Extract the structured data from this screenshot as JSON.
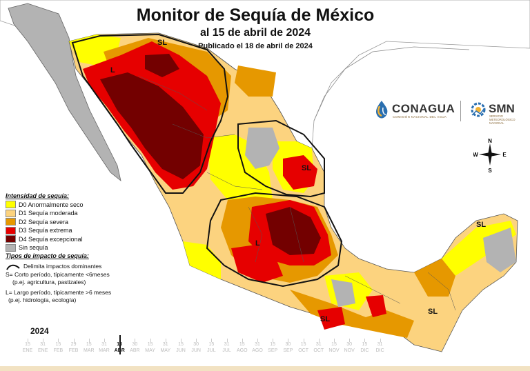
{
  "title": "Monitor de Sequía de México",
  "subtitle": "al 15 de abril de 2024",
  "published": "Publicado el 18 de abril de 2024",
  "branding": {
    "conagua": "CONAGUA",
    "conagua_sub": "COMISIÓN NACIONAL DEL AGUA",
    "smn": "SMN",
    "smn_sub": "SERVICIO METEOROLÓGICO NACIONAL"
  },
  "compass": {
    "n": "N",
    "s": "S",
    "e": "E",
    "w": "W"
  },
  "legend": {
    "heading": "Intensidad de sequía:",
    "items": [
      {
        "label": "D0 Anormalmente seco",
        "color": "#ffff00"
      },
      {
        "label": "D1 Sequía moderada",
        "color": "#fcd37f"
      },
      {
        "label": "D2 Sequía severa",
        "color": "#e69800"
      },
      {
        "label": "D3 Sequía extrema",
        "color": "#e60000"
      },
      {
        "label": "D4 Sequía excepcional",
        "color": "#730000"
      },
      {
        "label": "Sin sequía",
        "color": "#b3b3b3"
      }
    ]
  },
  "impacts": {
    "heading": "Tipos de impacto de sequía:",
    "line_label": "Delimita impactos dominantes",
    "short": "S= Corto período, típicamente <6meses",
    "short_ex": "(p.ej. agricultura, pastizales)",
    "long": "L= Largo período, típicamente >6 meses",
    "long_ex": "(p.ej. hidrología, ecología)"
  },
  "map_labels": [
    "SL",
    "L",
    "SL",
    "L",
    "SL",
    "SL",
    "SL"
  ],
  "timeline": {
    "year": "2024",
    "days": [
      "15",
      "31",
      "15",
      "29",
      "15",
      "31",
      "15",
      "30",
      "15",
      "31",
      "15",
      "30",
      "15",
      "31",
      "15",
      "31",
      "15",
      "30",
      "15",
      "31",
      "15",
      "30",
      "15",
      "31"
    ],
    "months": [
      "ENE",
      "ENE",
      "FEB",
      "FEB",
      "MAR",
      "MAR",
      "ABR",
      "ABR",
      "MAY",
      "MAY",
      "JUN",
      "JUN",
      "JUL",
      "JUL",
      "AGO",
      "AGO",
      "SEP",
      "SEP",
      "OCT",
      "OCT",
      "NOV",
      "NOV",
      "DIC",
      "DIC"
    ],
    "current_index": 6
  }
}
